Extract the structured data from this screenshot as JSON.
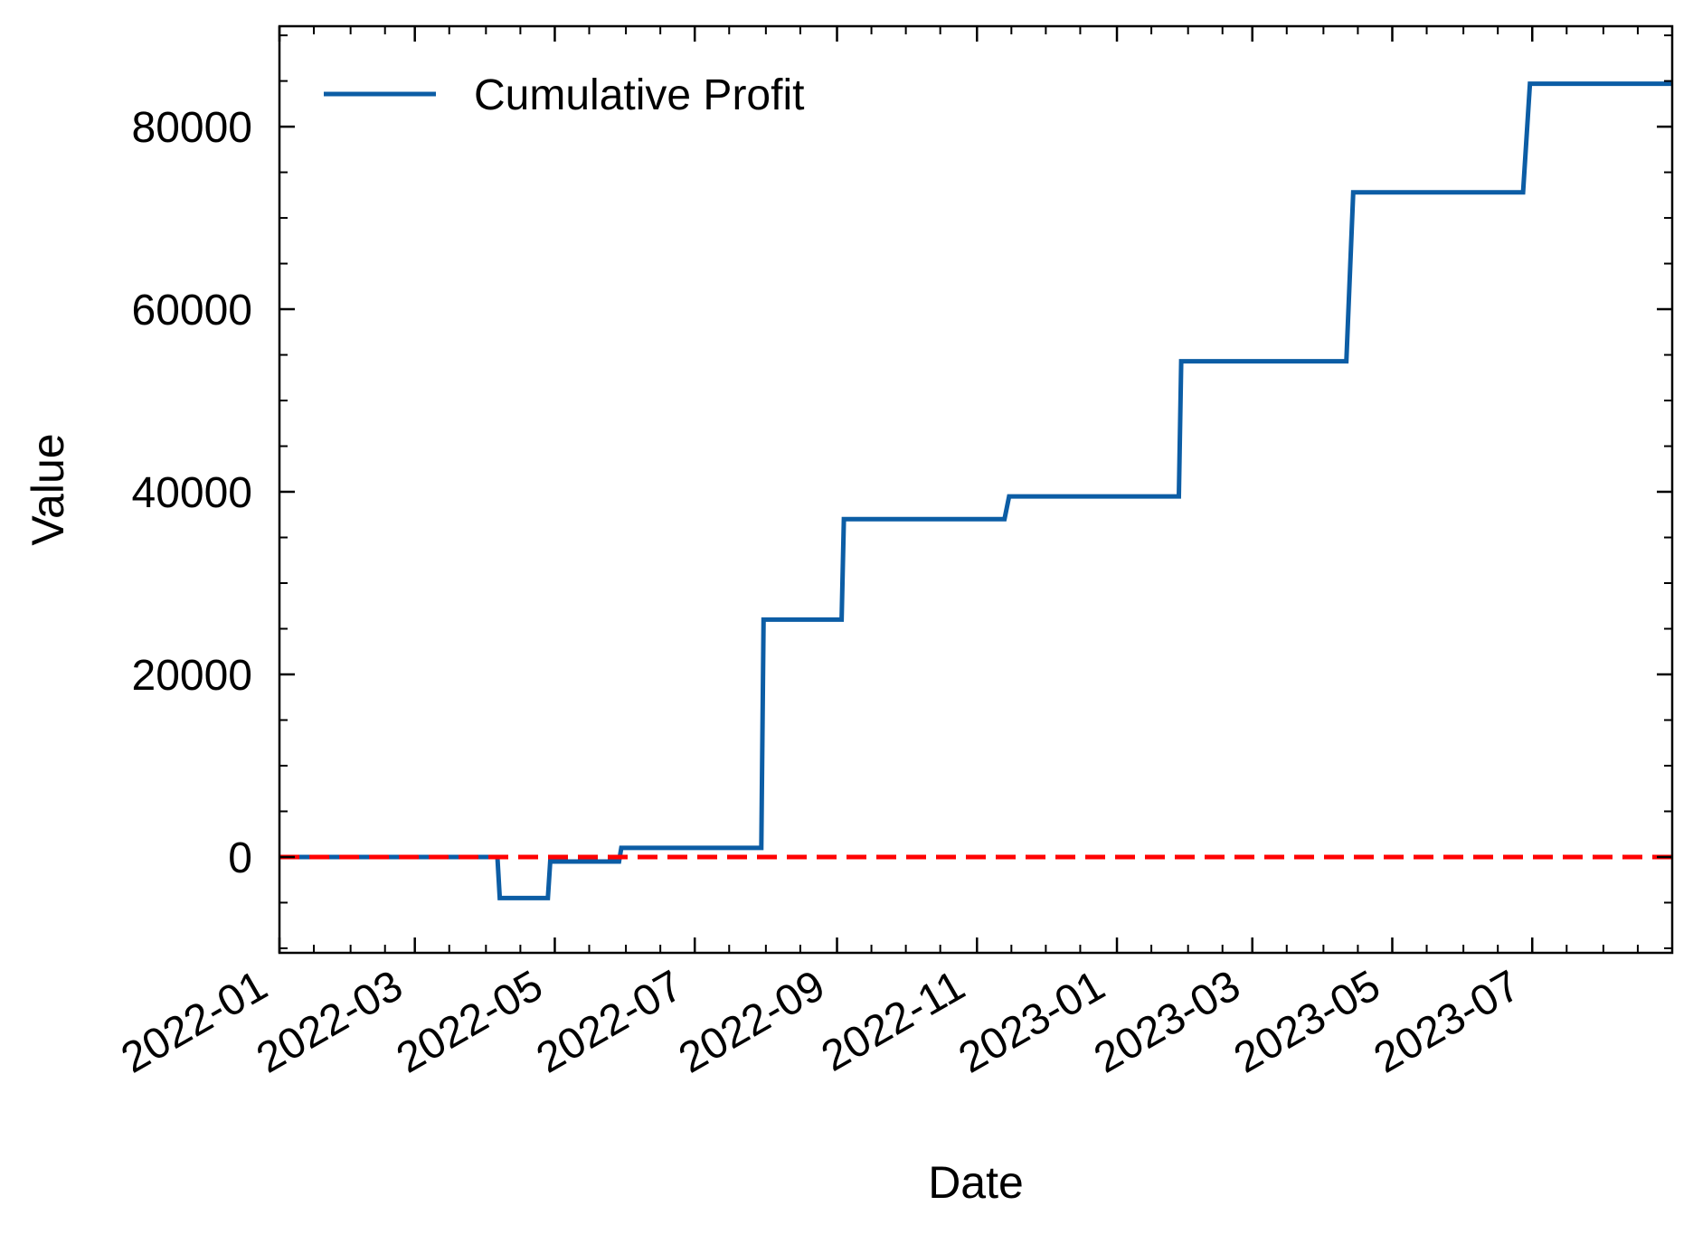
{
  "chart_data": {
    "type": "line",
    "title": "",
    "xlabel": "Date",
    "ylabel": "Value",
    "x_axis_type": "date",
    "xlim": [
      "2022-01-01",
      "2023-08-31"
    ],
    "ylim": [
      -10500,
      91000
    ],
    "x_ticks": [
      "2022-01",
      "2022-03",
      "2022-05",
      "2022-07",
      "2022-09",
      "2022-11",
      "2023-01",
      "2023-03",
      "2023-05",
      "2023-07"
    ],
    "y_ticks": [
      0,
      20000,
      40000,
      60000,
      80000
    ],
    "grid": false,
    "legend_position": "top-left",
    "series": [
      {
        "name": "Cumulative Profit",
        "color": "#0C5DA5",
        "style": "step-line",
        "points": [
          {
            "x": "2022-01-01",
            "y": 0
          },
          {
            "x": "2022-04-06",
            "y": 0
          },
          {
            "x": "2022-04-07",
            "y": -4500
          },
          {
            "x": "2022-04-28",
            "y": -4500
          },
          {
            "x": "2022-04-29",
            "y": -500
          },
          {
            "x": "2022-05-29",
            "y": -500
          },
          {
            "x": "2022-05-30",
            "y": 1000
          },
          {
            "x": "2022-07-30",
            "y": 1000
          },
          {
            "x": "2022-07-31",
            "y": 26000
          },
          {
            "x": "2022-09-03",
            "y": 26000
          },
          {
            "x": "2022-09-04",
            "y": 37000
          },
          {
            "x": "2022-11-13",
            "y": 37000
          },
          {
            "x": "2022-11-15",
            "y": 39500
          },
          {
            "x": "2023-01-28",
            "y": 39500
          },
          {
            "x": "2023-01-29",
            "y": 54300
          },
          {
            "x": "2023-04-11",
            "y": 54300
          },
          {
            "x": "2023-04-14",
            "y": 72800
          },
          {
            "x": "2023-06-27",
            "y": 72800
          },
          {
            "x": "2023-06-30",
            "y": 84700
          },
          {
            "x": "2023-08-31",
            "y": 84700
          }
        ]
      }
    ],
    "reference_lines": [
      {
        "type": "horizontal",
        "y": 0,
        "color": "#FF0000",
        "style": "dashed"
      }
    ]
  }
}
